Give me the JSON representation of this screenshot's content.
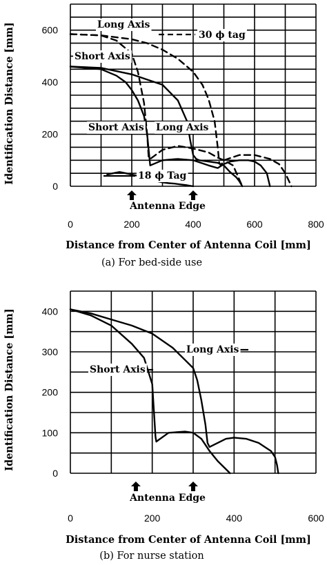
{
  "chart_data": [
    {
      "type": "line",
      "caption": "(a) For bed-side use",
      "xlabel": "Distance from Center of Antenna Coil [mm]",
      "ylabel": "Identification Distance [mm]",
      "xlim": [
        0,
        800
      ],
      "ylim": [
        0,
        700
      ],
      "x_ticks": [
        0,
        200,
        400,
        600,
        800
      ],
      "x_tick_labels": [
        "0",
        "200",
        "400",
        "600",
        "800"
      ],
      "y_ticks": [
        0,
        200,
        400,
        600
      ],
      "y_tick_labels": [
        "0",
        "200",
        "400",
        "600"
      ],
      "grid": true,
      "antenna_edge_label": "Antenna Edge",
      "antenna_edge_x": [
        200,
        400
      ],
      "series": [
        {
          "name": "",
          "style": "dashed",
          "x": [
            0,
            100,
            200,
            250,
            300,
            350,
            400,
            430,
            450,
            470,
            480,
            485,
            490,
            500,
            550,
            600,
            650,
            680,
            700,
            720
          ],
          "y": [
            585,
            580,
            565,
            550,
            525,
            490,
            440,
            390,
            335,
            250,
            150,
            90,
            80,
            100,
            120,
            120,
            105,
            85,
            50,
            0
          ]
        },
        {
          "name": "",
          "style": "dashed",
          "x": [
            0,
            100,
            150,
            200,
            220,
            240,
            250,
            255,
            260,
            300,
            350,
            400,
            450,
            480,
            500,
            530,
            560
          ],
          "y": [
            585,
            580,
            560,
            510,
            440,
            320,
            200,
            110,
            105,
            140,
            155,
            145,
            130,
            110,
            100,
            80,
            0
          ]
        },
        {
          "name": "",
          "style": "solid",
          "x": [
            0,
            100,
            200,
            250,
            300,
            350,
            380,
            390,
            400,
            410,
            420,
            450,
            480,
            500,
            520,
            540,
            550,
            560
          ],
          "y": [
            460,
            455,
            430,
            410,
            390,
            330,
            250,
            180,
            120,
            105,
            100,
            95,
            90,
            80,
            55,
            35,
            20,
            0
          ]
        },
        {
          "name": "",
          "style": "solid",
          "x": [
            0,
            100,
            150,
            180,
            200,
            220,
            240,
            250,
            255,
            260,
            300,
            350,
            400,
            450,
            480,
            500,
            520,
            550,
            580,
            600,
            620,
            640,
            650
          ],
          "y": [
            460,
            450,
            425,
            400,
            370,
            330,
            270,
            200,
            140,
            80,
            100,
            105,
            100,
            80,
            70,
            85,
            95,
            100,
            100,
            95,
            80,
            50,
            0
          ]
        },
        {
          "name": "",
          "style": "solid",
          "x": [
            120,
            140,
            160,
            180,
            200,
            220,
            240,
            260,
            280,
            300,
            320,
            340,
            360,
            380,
            400
          ],
          "y": [
            45,
            50,
            55,
            50,
            45,
            40,
            32,
            25,
            20,
            15,
            12,
            10,
            7,
            4,
            0
          ]
        }
      ],
      "annotations": [
        "Long Axis",
        "30 ϕ tag",
        "Short Axis",
        "Short Axis",
        "Long Axis",
        "18 ϕ Tag"
      ]
    },
    {
      "type": "line",
      "caption": "(b) For nurse station",
      "xlabel": "Distance from Center of Antenna Coil [mm]",
      "ylabel": "Identification Distance [mm]",
      "xlim": [
        0,
        600
      ],
      "ylim": [
        0,
        450
      ],
      "x_ticks": [
        0,
        200,
        400,
        600
      ],
      "x_tick_labels": [
        "0",
        "200",
        "400",
        "600"
      ],
      "y_ticks": [
        0,
        100,
        200,
        300,
        400
      ],
      "y_tick_labels": [
        "0",
        "100",
        "200",
        "300",
        "400"
      ],
      "grid": true,
      "antenna_edge_label": "Antenna Edge",
      "antenna_edge_x": [
        160,
        300
      ],
      "series": [
        {
          "name": "",
          "style": "solid",
          "x": [
            0,
            50,
            100,
            150,
            180,
            200,
            205,
            208,
            210,
            215,
            240,
            280,
            300,
            320,
            340,
            360,
            380,
            390
          ],
          "y": [
            405,
            390,
            365,
            320,
            285,
            220,
            140,
            90,
            78,
            82,
            100,
            103,
            100,
            85,
            55,
            30,
            10,
            0
          ]
        },
        {
          "name": "",
          "style": "solid",
          "x": [
            0,
            50,
            100,
            150,
            200,
            250,
            280,
            300,
            310,
            320,
            330,
            335,
            340,
            350,
            380,
            400,
            430,
            460,
            490,
            500,
            505,
            508
          ],
          "y": [
            405,
            395,
            380,
            365,
            345,
            310,
            280,
            260,
            230,
            180,
            120,
            75,
            65,
            70,
            85,
            88,
            85,
            75,
            55,
            40,
            20,
            0
          ]
        }
      ],
      "annotations": [
        "Long Axis",
        "Short Axis"
      ]
    }
  ]
}
